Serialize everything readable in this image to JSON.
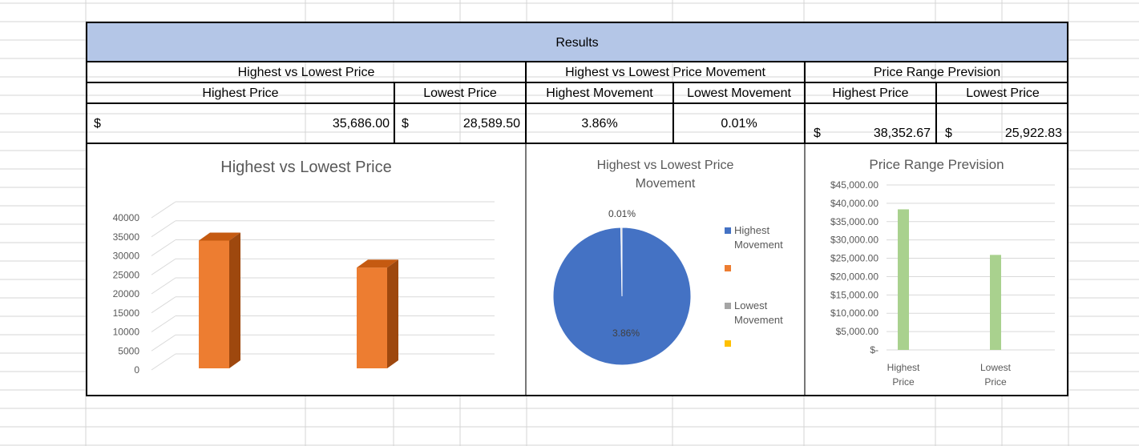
{
  "results_title": "Results",
  "groups": {
    "hl_price": "Highest vs Lowest Price",
    "hl_movement": "Highest vs Lowest Price Movement",
    "range_prevision": "Price Range Prevision"
  },
  "headers": {
    "highest_price": "Highest Price",
    "lowest_price": "Lowest Price",
    "highest_movement": "Highest Movement",
    "lowest_movement": "Lowest Movement",
    "prev_highest_price": "Highest Price",
    "prev_lowest_price": "Lowest Price"
  },
  "values": {
    "currency": "$",
    "highest_price": "35,686.00",
    "lowest_price": "28,589.50",
    "highest_movement": "3.86%",
    "lowest_movement": "0.01%",
    "prev_highest_price": "38,352.67",
    "prev_lowest_price": "25,922.83"
  },
  "chart_data": [
    {
      "type": "bar",
      "title": "Highest vs Lowest Price",
      "categories": [
        "",
        ""
      ],
      "values": [
        35686,
        28589.5
      ],
      "ylim": [
        0,
        40000
      ],
      "yticks": [
        "0",
        "5000",
        "10000",
        "15000",
        "20000",
        "25000",
        "30000",
        "35000",
        "40000"
      ],
      "color": "#ED7D31",
      "style": "3d-column",
      "grid": true
    },
    {
      "type": "pie",
      "title_line1": "Highest vs Lowest Price",
      "title_line2": "Movement",
      "slices": [
        {
          "label": "Highest Movement",
          "value": 3.86,
          "display": "3.86%",
          "color": "#4472C4"
        },
        {
          "label": "Lowest Movement",
          "value": 0.01,
          "display": "0.01%",
          "color": "#A5A5A5"
        }
      ],
      "legend": [
        {
          "line1": "Highest",
          "line2": "Movement",
          "color": "#4472C4"
        },
        {
          "line1": "",
          "line2": "",
          "color": "#ED7D31"
        },
        {
          "line1": "Lowest",
          "line2": "Movement",
          "color": "#A5A5A5"
        },
        {
          "line1": "",
          "line2": "",
          "color": "#FFC000"
        }
      ],
      "legend_position": "right"
    },
    {
      "type": "bar",
      "title": "Price Range Prevision",
      "categories": [
        {
          "line1": "Highest",
          "line2": "Price"
        },
        {
          "line1": "Lowest",
          "line2": "Price"
        }
      ],
      "values": [
        38352.67,
        25922.83
      ],
      "ylim": [
        0,
        45000
      ],
      "yticks": [
        "$-",
        "$5,000.00",
        "$10,000.00",
        "$15,000.00",
        "$20,000.00",
        "$25,000.00",
        "$30,000.00",
        "$35,000.00",
        "$40,000.00",
        "$45,000.00"
      ],
      "color": "#A9D18E",
      "grid": true
    }
  ]
}
